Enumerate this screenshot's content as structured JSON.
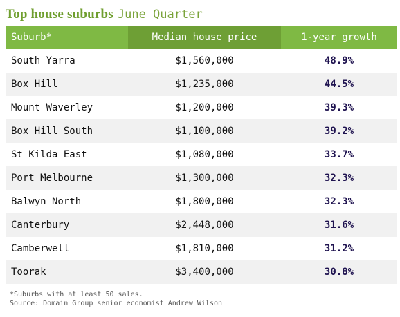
{
  "title": {
    "bold": "Top house suburbs",
    "light": "June Quarter"
  },
  "colors": {
    "header_green": "#7fb944",
    "header_green_dark": "#6e9f35",
    "title_green": "#6f9e2e",
    "growth_text": "#1f1350",
    "row_stripe": "#f1f1f1"
  },
  "chart_data": {
    "type": "table",
    "title": "Top house suburbs June Quarter",
    "columns": [
      "Suburb*",
      "Median house price",
      "1-year growth"
    ],
    "rows": [
      [
        "South Yarra",
        "$1,560,000",
        "48.9%"
      ],
      [
        "Box Hill",
        "$1,235,000",
        "44.5%"
      ],
      [
        "Mount Waverley",
        "$1,200,000",
        "39.3%"
      ],
      [
        "Box Hill South",
        "$1,100,000",
        "39.2%"
      ],
      [
        "St Kilda East",
        "$1,080,000",
        "33.7%"
      ],
      [
        "Port Melbourne",
        "$1,300,000",
        "32.3%"
      ],
      [
        "Balwyn North",
        "$1,800,000",
        "32.3%"
      ],
      [
        "Canterbury",
        "$2,448,000",
        "31.6%"
      ],
      [
        "Camberwell",
        "$1,810,000",
        "31.2%"
      ],
      [
        "Toorak",
        "$3,400,000",
        "30.8%"
      ]
    ],
    "footnotes": [
      "*Suburbs with at least 50 sales.",
      "Source: Domain Group senior economist Andrew Wilson"
    ]
  }
}
